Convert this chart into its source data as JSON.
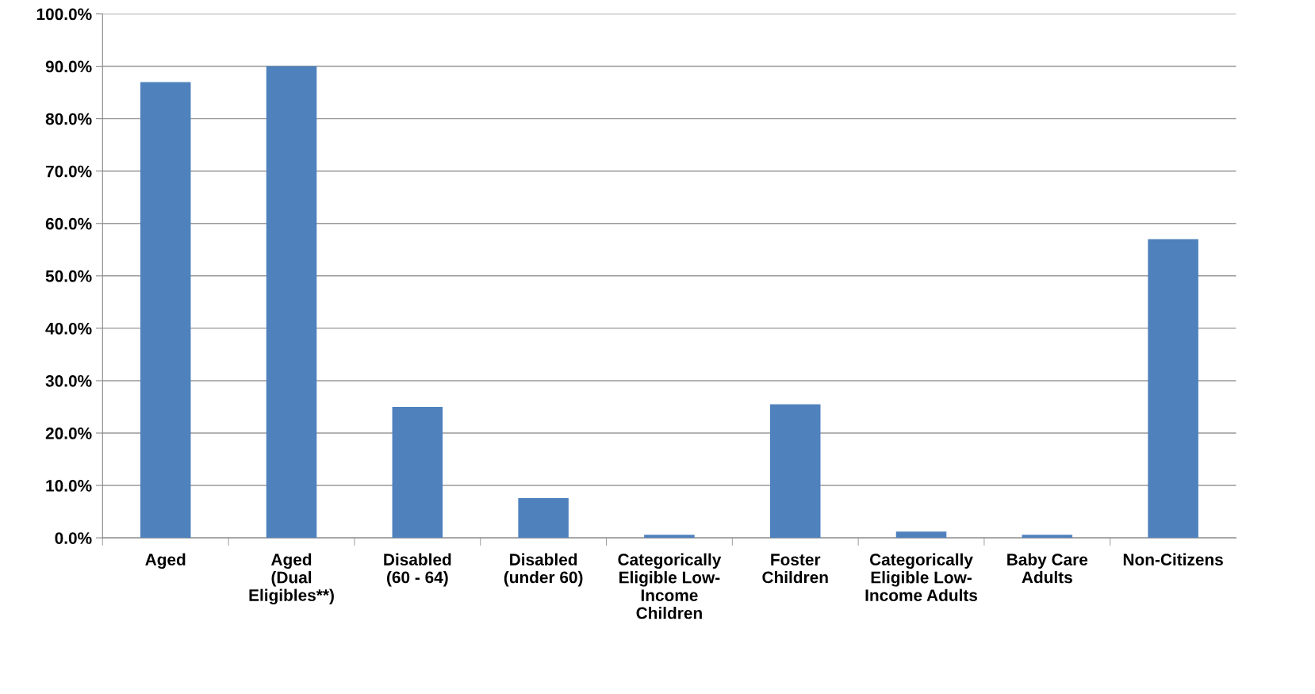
{
  "chart_data": {
    "type": "bar",
    "categories": [
      "Aged",
      "Aged\n(Dual\nEligibles**)",
      "Disabled\n(60 - 64)",
      "Disabled\n(under 60)",
      "Categorically\nEligible Low-\nIncome\nChildren",
      "Foster\nChildren",
      "Categorically\nEligible Low-\nIncome Adults",
      "Baby Care\nAdults",
      "Non-Citizens"
    ],
    "values": [
      87.0,
      90.0,
      25.0,
      7.6,
      0.6,
      25.5,
      1.2,
      0.6,
      57.0
    ],
    "color": "#4f81bd",
    "ylim": [
      0,
      100
    ],
    "yticks": [
      {
        "value": 0,
        "label": "0.0%"
      },
      {
        "value": 10,
        "label": "10.0%"
      },
      {
        "value": 20,
        "label": "20.0%"
      },
      {
        "value": 30,
        "label": "30.0%"
      },
      {
        "value": 40,
        "label": "40.0%"
      },
      {
        "value": 50,
        "label": "50.0%"
      },
      {
        "value": 60,
        "label": "60.0%"
      },
      {
        "value": 70,
        "label": "70.0%"
      },
      {
        "value": 80,
        "label": "80.0%"
      },
      {
        "value": 90,
        "label": "90.0%"
      },
      {
        "value": 100,
        "label": "100.0%"
      }
    ],
    "grid": "y",
    "legend": false
  }
}
